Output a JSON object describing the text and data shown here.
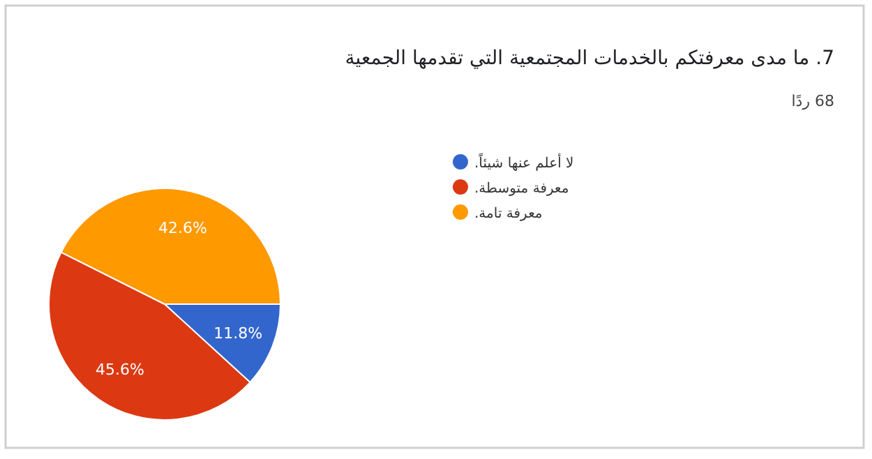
{
  "chart_data": {
    "type": "pie",
    "title": "7. ما مدى معرفتكم بالخدمات المجتمعية التي تقدمها الجمعية",
    "subtitle": "68 ردًا",
    "categories": [
      "لا أعلم عنها شيئاً.",
      "معرفة متوسطة.",
      "معرفة تامة."
    ],
    "values": [
      11.8,
      45.6,
      42.6
    ],
    "colors": [
      "#3366cc",
      "#dc3912",
      "#ff9900"
    ],
    "value_labels": [
      "11.8%",
      "45.6%",
      "42.6%"
    ],
    "legend": "right"
  }
}
